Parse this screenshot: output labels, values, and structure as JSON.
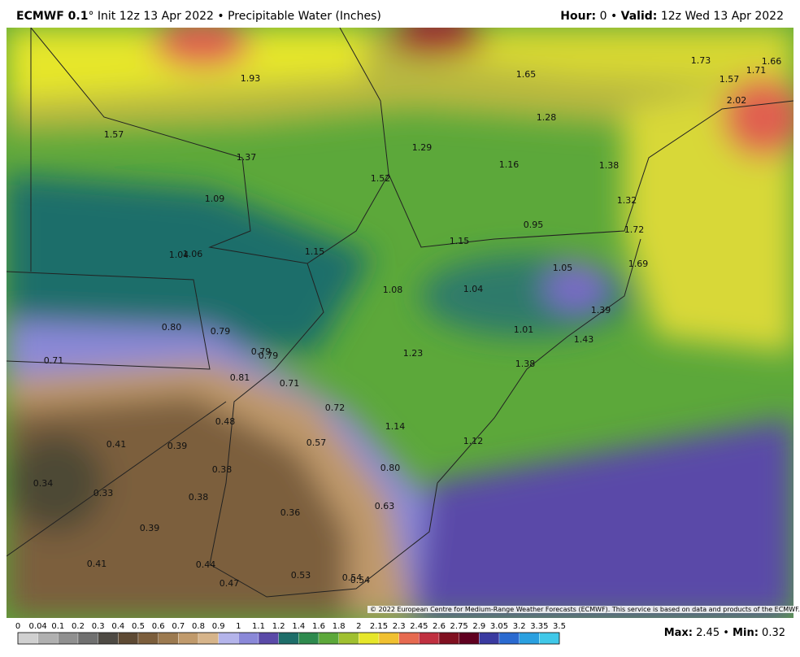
{
  "header": {
    "model": "ECMWF 0.1",
    "degree": "°",
    "init": "Init 12z 13 Apr 2022",
    "separator": "•",
    "field": "Precipitable Water (Inches)",
    "hour_label": "Hour:",
    "hour": "0",
    "valid_label": "Valid:",
    "valid": "12z Wed 13 Apr 2022"
  },
  "map_labels": [
    "1.93",
    "1.65",
    "1.73",
    "1.66",
    "1.71",
    "1.57",
    "2.02",
    "1.28",
    "1.57",
    "1.29",
    "1.16",
    "1.38",
    "1.37",
    "1.52",
    "1.09",
    "1.32",
    "0.95",
    "1.72",
    "1.15",
    "1.04",
    "1.06",
    "1.15",
    "1.69",
    "1.05",
    "1.08",
    "1.04",
    "1.39",
    "0.80",
    "0.79",
    "1.01",
    "1.43",
    "0.71",
    "0.79",
    "0.79",
    "1.23",
    "1.38",
    "0.81",
    "0.71",
    "0.72",
    "1.14",
    "0.48",
    "0.57",
    "1.12",
    "0.41",
    "0.39",
    "0.80",
    "0.38",
    "0.34",
    "0.33",
    "0.38",
    "0.36",
    "0.63",
    "0.39",
    "0.41",
    "0.44",
    "0.47",
    "0.53",
    "0.54",
    "0.54"
  ],
  "copyright": "© 2022 European Centre for Medium-Range Weather Forecasts (ECMWF). This service is based on data and products of the ECMWF.",
  "colorbar": {
    "ticks": [
      "0",
      "0.04",
      "0.1",
      "0.2",
      "0.3",
      "0.4",
      "0.5",
      "0.6",
      "0.7",
      "0.8",
      "0.9",
      "1",
      "1.1",
      "1.2",
      "1.4",
      "1.6",
      "1.8",
      "2",
      "2.15",
      "2.3",
      "2.45",
      "2.6",
      "2.75",
      "2.9",
      "3.05",
      "3.2",
      "3.35",
      "3.5"
    ],
    "colors": [
      "#d0d0d0",
      "#b0b0b0",
      "#909090",
      "#707070",
      "#4e4a44",
      "#5e4a34",
      "#7c5e3c",
      "#9c7a50",
      "#c09a6c",
      "#d6b48a",
      "#b4b4ea",
      "#8a88d8",
      "#5a4aa8",
      "#1e6e6a",
      "#2e8a4e",
      "#5ca83a",
      "#a0c030",
      "#e6e62a",
      "#f0c030",
      "#e66a50",
      "#c03040",
      "#801020",
      "#600020",
      "#3a3aa0",
      "#2a6ad0",
      "#2aa0e0",
      "#40c8e8"
    ]
  },
  "footer": {
    "max_label": "Max:",
    "max": "2.45",
    "separator": "•",
    "min_label": "Min:",
    "min": "0.32"
  }
}
